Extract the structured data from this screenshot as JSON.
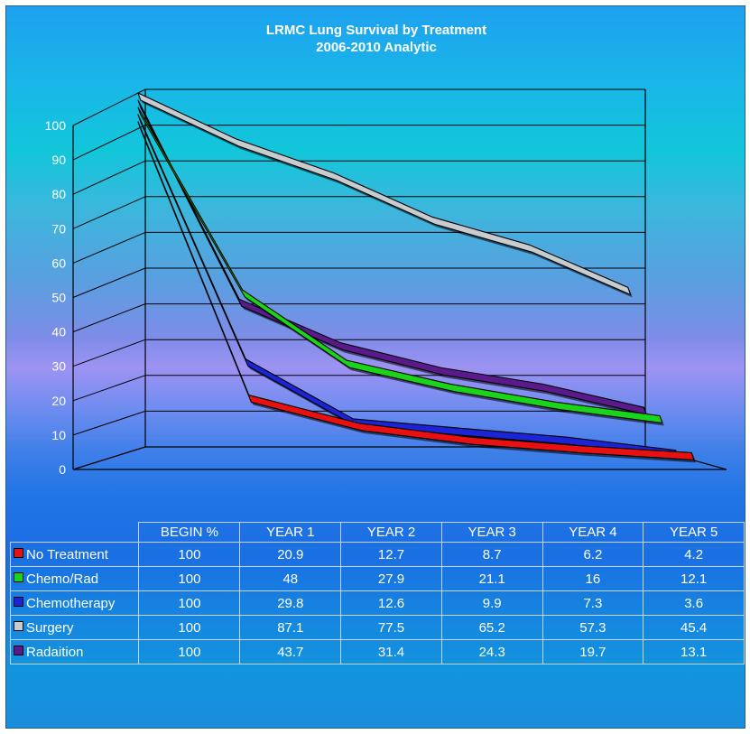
{
  "chart_data": {
    "type": "line",
    "title": "LRMC Lung Survival by Treatment",
    "subtitle": "2006-2010 Analytic",
    "categories": [
      "BEGIN %",
      "YEAR 1",
      "YEAR 2",
      "YEAR 3",
      "YEAR 4",
      "YEAR 5"
    ],
    "ylim": [
      0,
      100
    ],
    "yticks": [
      0,
      10,
      20,
      30,
      40,
      50,
      60,
      70,
      80,
      90,
      100
    ],
    "grid": true,
    "three_d": true,
    "series": [
      {
        "name": "No Treatment",
        "color": "#e81010",
        "values": [
          100,
          20.9,
          12.7,
          8.7,
          6.2,
          4.2
        ]
      },
      {
        "name": "Chemo/Rad",
        "color": "#19d41a",
        "values": [
          100,
          48,
          27.9,
          21.1,
          16,
          12.1
        ]
      },
      {
        "name": "Chemotherapy",
        "color": "#1c24d8",
        "values": [
          100,
          29.8,
          12.6,
          9.9,
          7.3,
          3.6
        ]
      },
      {
        "name": "Surgery",
        "color": "#c6cccf",
        "values": [
          100,
          87.1,
          77.5,
          65.2,
          57.3,
          45.4
        ]
      },
      {
        "name": "Radaition",
        "color": "#5a1a8c",
        "values": [
          100,
          43.7,
          31.4,
          24.3,
          19.7,
          13.1
        ]
      }
    ],
    "table": {
      "header": [
        "BEGIN %",
        "YEAR 1",
        "YEAR 2",
        "YEAR 3",
        "YEAR 4",
        "YEAR 5"
      ],
      "rows": [
        {
          "label": "No Treatment",
          "cells": [
            "100",
            "20.9",
            "12.7",
            "8.7",
            "6.2",
            "4.2"
          ]
        },
        {
          "label": "Chemo/Rad",
          "cells": [
            "100",
            "48",
            "27.9",
            "21.1",
            "16",
            "12.1"
          ]
        },
        {
          "label": "Chemotherapy",
          "cells": [
            "100",
            "29.8",
            "12.6",
            "9.9",
            "7.3",
            "3.6"
          ]
        },
        {
          "label": "Surgery",
          "cells": [
            "100",
            "87.1",
            "77.5",
            "65.2",
            "57.3",
            "45.4"
          ]
        },
        {
          "label": "Radaition",
          "cells": [
            "100",
            "43.7",
            "31.4",
            "24.3",
            "19.7",
            "13.1"
          ]
        }
      ]
    }
  }
}
